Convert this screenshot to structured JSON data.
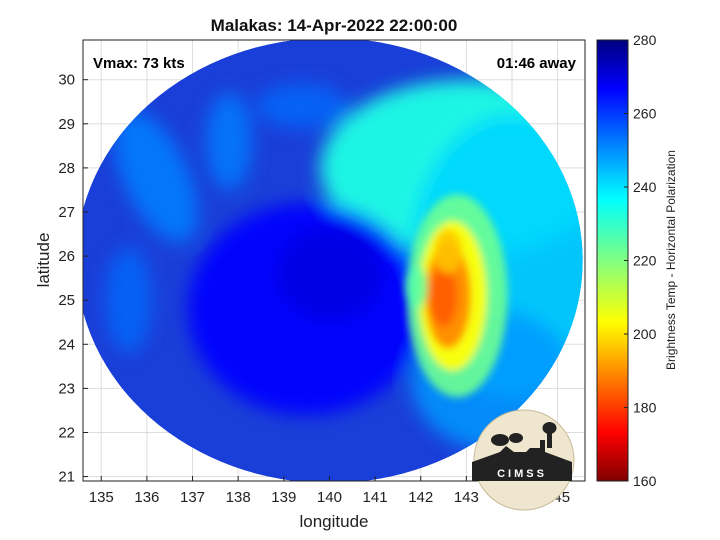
{
  "chart_data": {
    "type": "heatmap",
    "title": "Malakas: 14-Apr-2022 22:00:00",
    "xlabel": "longitude",
    "ylabel": "latitude",
    "xlim": [
      134.6,
      145.6
    ],
    "ylim": [
      20.9,
      30.9
    ],
    "x_ticks": [
      135,
      136,
      137,
      138,
      139,
      140,
      141,
      142,
      143,
      144,
      145
    ],
    "y_ticks": [
      21,
      22,
      23,
      24,
      25,
      26,
      27,
      28,
      29,
      30
    ],
    "grid": true,
    "annotations": {
      "vmax": "Vmax: 73 kts",
      "time_offset": "01:46 away"
    },
    "colorbar": {
      "label": "Brightness Temp - Horizontal Polarization",
      "range": [
        160,
        280
      ],
      "ticks": [
        160,
        180,
        200,
        220,
        240,
        260,
        280
      ],
      "colormap": "jet"
    },
    "swath": {
      "center": [
        140.0,
        25.9
      ],
      "radius_lon": 5.55,
      "radius_lat": 5.05
    },
    "features": [
      {
        "name": "eye",
        "lon": 140.0,
        "lat": 25.6,
        "value": 268
      },
      {
        "name": "inner core",
        "lon": 139.5,
        "lat": 24.8,
        "value": 265
      },
      {
        "name": "cold cell",
        "lon": 142.8,
        "lat": 25.0,
        "value": 190
      },
      {
        "name": "north-east region",
        "lon": 143.0,
        "lat": 28.0,
        "value": 232
      },
      {
        "name": "east region",
        "lon": 144.0,
        "lat": 26.0,
        "value": 240
      },
      {
        "name": "outer bands",
        "lon": 136.2,
        "lat": 27.8,
        "value": 250
      }
    ]
  },
  "logo": {
    "text": "CIMSS"
  },
  "colors": {
    "background": "#ffffff",
    "grid": "#dddddd",
    "axis": "#222222"
  }
}
